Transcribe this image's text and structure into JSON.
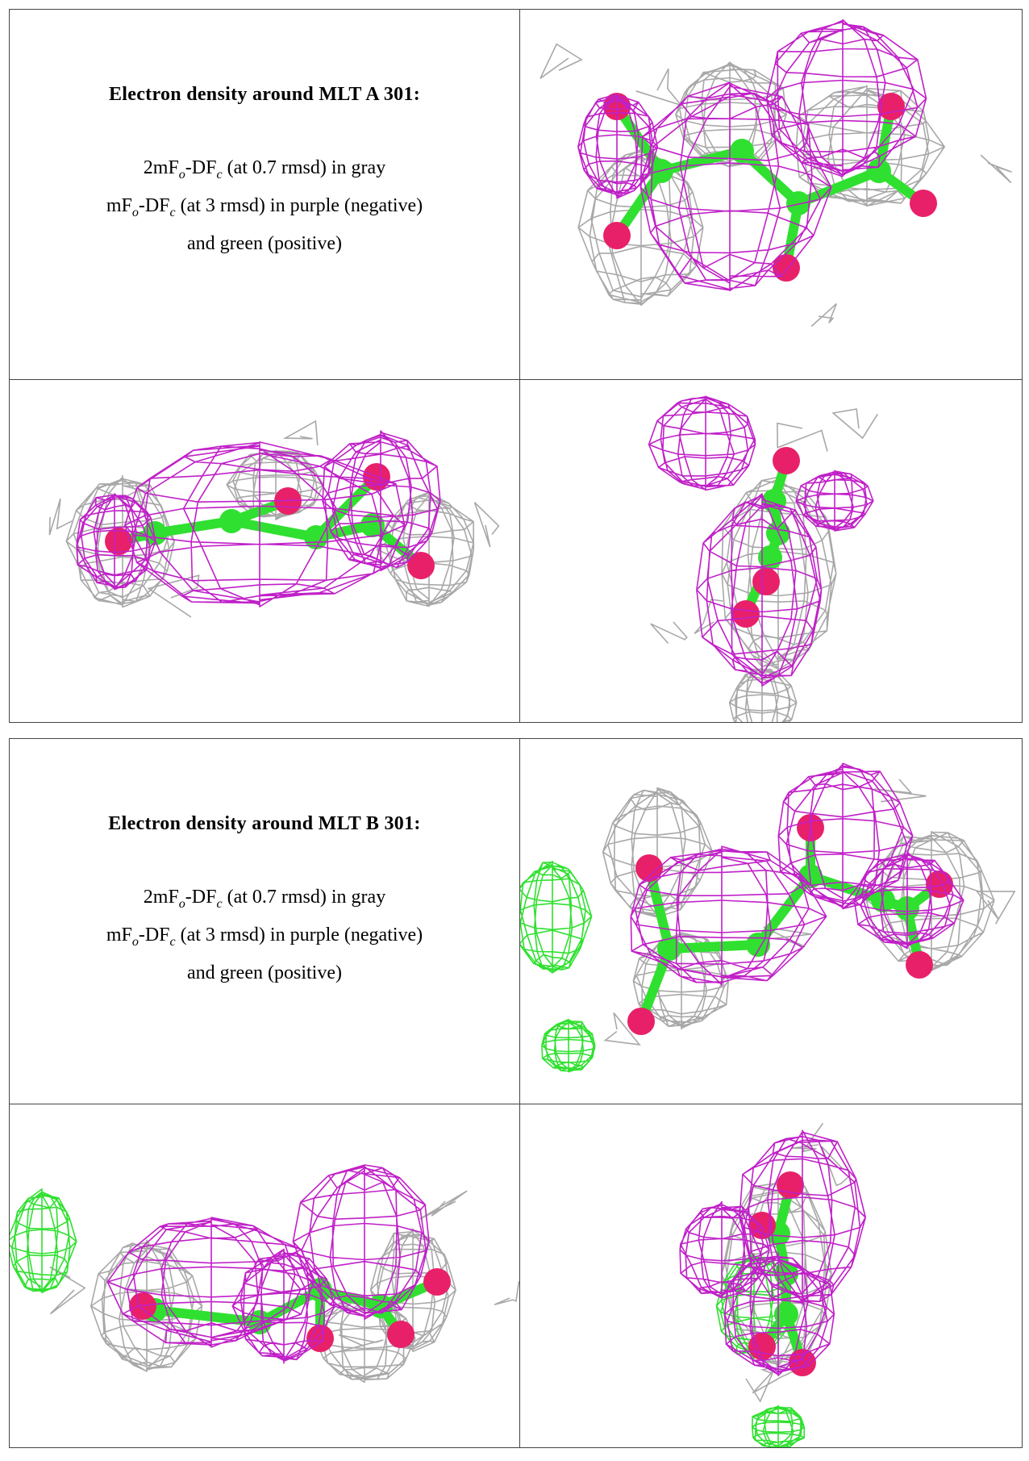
{
  "blocks": [
    {
      "title": "Electron density around MLT A 301:",
      "line1": [
        {
          "text": "2mF"
        },
        {
          "sub": "o"
        },
        {
          "text": "-DF"
        },
        {
          "sub": "c"
        },
        {
          "text": " (at 0.7 rmsd) in gray"
        }
      ],
      "line2": [
        {
          "text": "mF"
        },
        {
          "sub": "o"
        },
        {
          "text": "-DF"
        },
        {
          "sub": "c"
        },
        {
          "text": " (at 3 rmsd) in purple (negative)"
        }
      ],
      "line3": "and green (positive)"
    },
    {
      "title": "Electron density around MLT B 301:",
      "line1": [
        {
          "text": "2mF"
        },
        {
          "sub": "o"
        },
        {
          "text": "-DF"
        },
        {
          "sub": "c"
        },
        {
          "text": " (at 0.7 rmsd) in gray"
        }
      ],
      "line2": [
        {
          "text": "mF"
        },
        {
          "sub": "o"
        },
        {
          "text": "-DF"
        },
        {
          "sub": "c"
        },
        {
          "text": " (at 3 rmsd) in purple (negative)"
        }
      ],
      "line3": "and green (positive)"
    }
  ]
}
